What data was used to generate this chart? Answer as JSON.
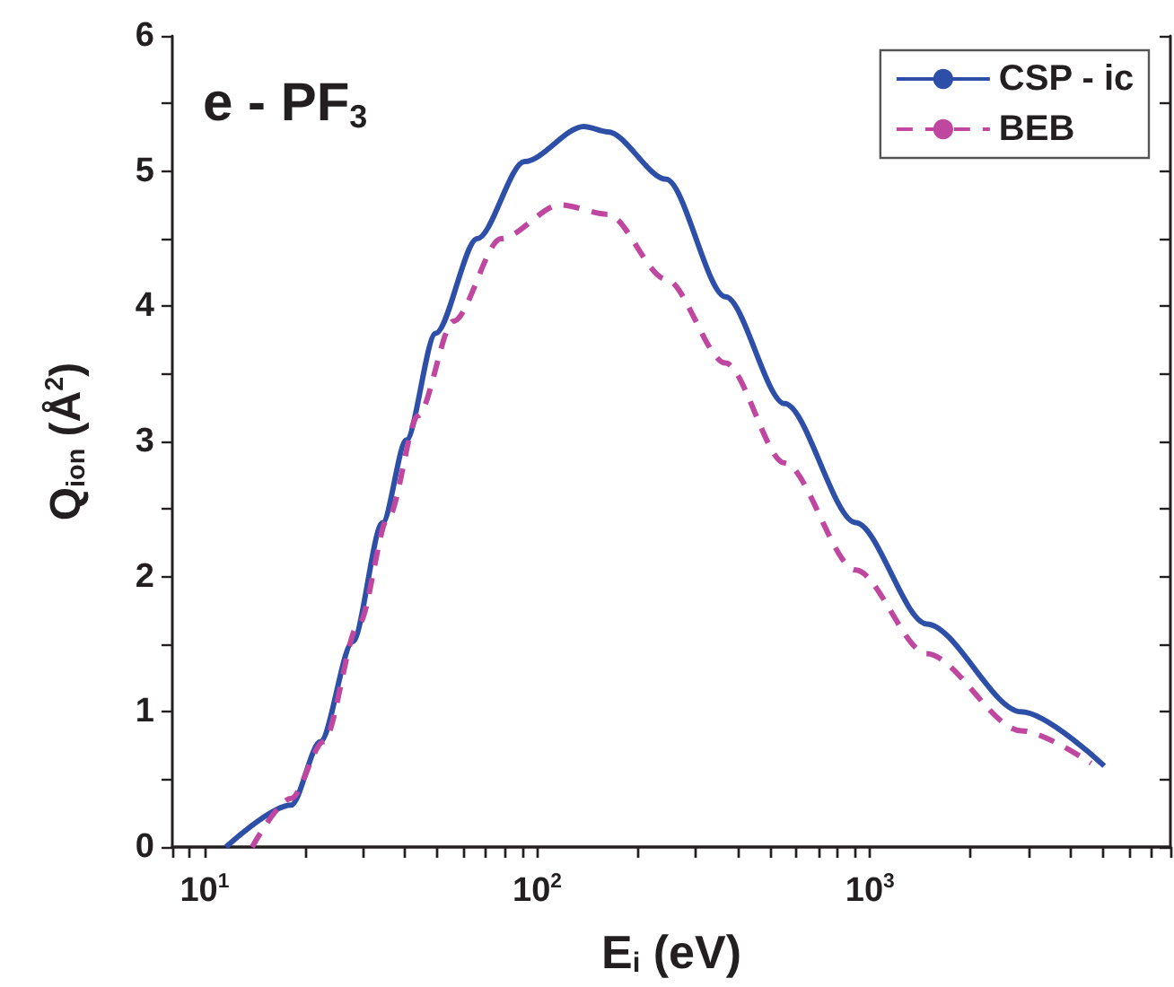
{
  "chart_data": {
    "type": "line",
    "title": "e - PF$_{3}$",
    "xlabel": "E$_{i}$ (eV)",
    "ylabel": "Q$_{ion}$ (Å$^{2}$)",
    "log": "x",
    "xlim": [
      8,
      8000
    ],
    "ylim": [
      0,
      6
    ],
    "xticks": [
      {
        "value": 8,
        "label": null
      },
      {
        "value": 9,
        "label": null
      },
      {
        "value": 10,
        "label": "10$^{1}$"
      },
      {
        "value": 20,
        "label": null
      },
      {
        "value": 30,
        "label": null
      },
      {
        "value": 40,
        "label": null
      },
      {
        "value": 50,
        "label": null
      },
      {
        "value": 60,
        "label": null
      },
      {
        "value": 70,
        "label": null
      },
      {
        "value": 80,
        "label": null
      },
      {
        "value": 90,
        "label": null
      },
      {
        "value": 100,
        "label": "10$^{2}$"
      },
      {
        "value": 200,
        "label": null
      },
      {
        "value": 300,
        "label": null
      },
      {
        "value": 400,
        "label": null
      },
      {
        "value": 500,
        "label": null
      },
      {
        "value": 600,
        "label": null
      },
      {
        "value": 700,
        "label": null
      },
      {
        "value": 800,
        "label": null
      },
      {
        "value": 900,
        "label": null
      },
      {
        "value": 1000,
        "label": "10$^{3}$"
      },
      {
        "value": 2000,
        "label": null
      },
      {
        "value": 3000,
        "label": null
      },
      {
        "value": 4000,
        "label": null
      },
      {
        "value": 5000,
        "label": null
      },
      {
        "value": 6000,
        "label": null
      },
      {
        "value": 7000,
        "label": null
      },
      {
        "value": 8000,
        "label": null
      }
    ],
    "yticks": [
      0,
      {
        "value": 0.5,
        "label": null
      },
      1,
      {
        "value": 1.5,
        "label": null
      },
      2,
      {
        "value": 2.5,
        "label": null
      },
      3,
      {
        "value": 3.5,
        "label": null
      },
      4,
      {
        "value": 4.5,
        "label": null
      },
      5,
      {
        "value": 5.5,
        "label": null
      },
      6
    ],
    "grid": false,
    "legend": "top right",
    "marker": "none",
    "series": [
      {
        "name": "CSP - ic",
        "color": "#2e4fa8",
        "line_style": "solid",
        "x": [
          11.6,
          18.2,
          22.3,
          27.9,
          34.3,
          40.4,
          49.5,
          66,
          91.6,
          138,
          163,
          244,
          368,
          554,
          906,
          1480,
          2850,
          5060
        ],
        "values": [
          0,
          0.31,
          0.78,
          1.52,
          2.4,
          3.01,
          3.8,
          4.5,
          5.07,
          5.33,
          5.29,
          4.94,
          4.07,
          3.28,
          2.4,
          1.65,
          1.0,
          0.6
        ]
      },
      {
        "name": "BEB",
        "color": "#c0479f",
        "line_style": "dashed",
        "x": [
          13.9,
          18.2,
          22.8,
          29.1,
          35.7,
          43.8,
          56,
          77.8,
          117,
          163,
          244,
          368,
          554,
          906,
          1480,
          2850,
          4620
        ],
        "values": [
          0,
          0.36,
          0.78,
          1.65,
          2.44,
          3.19,
          3.89,
          4.5,
          4.75,
          4.68,
          4.2,
          3.58,
          2.84,
          2.05,
          1.43,
          0.86,
          0.62
        ]
      }
    ]
  }
}
